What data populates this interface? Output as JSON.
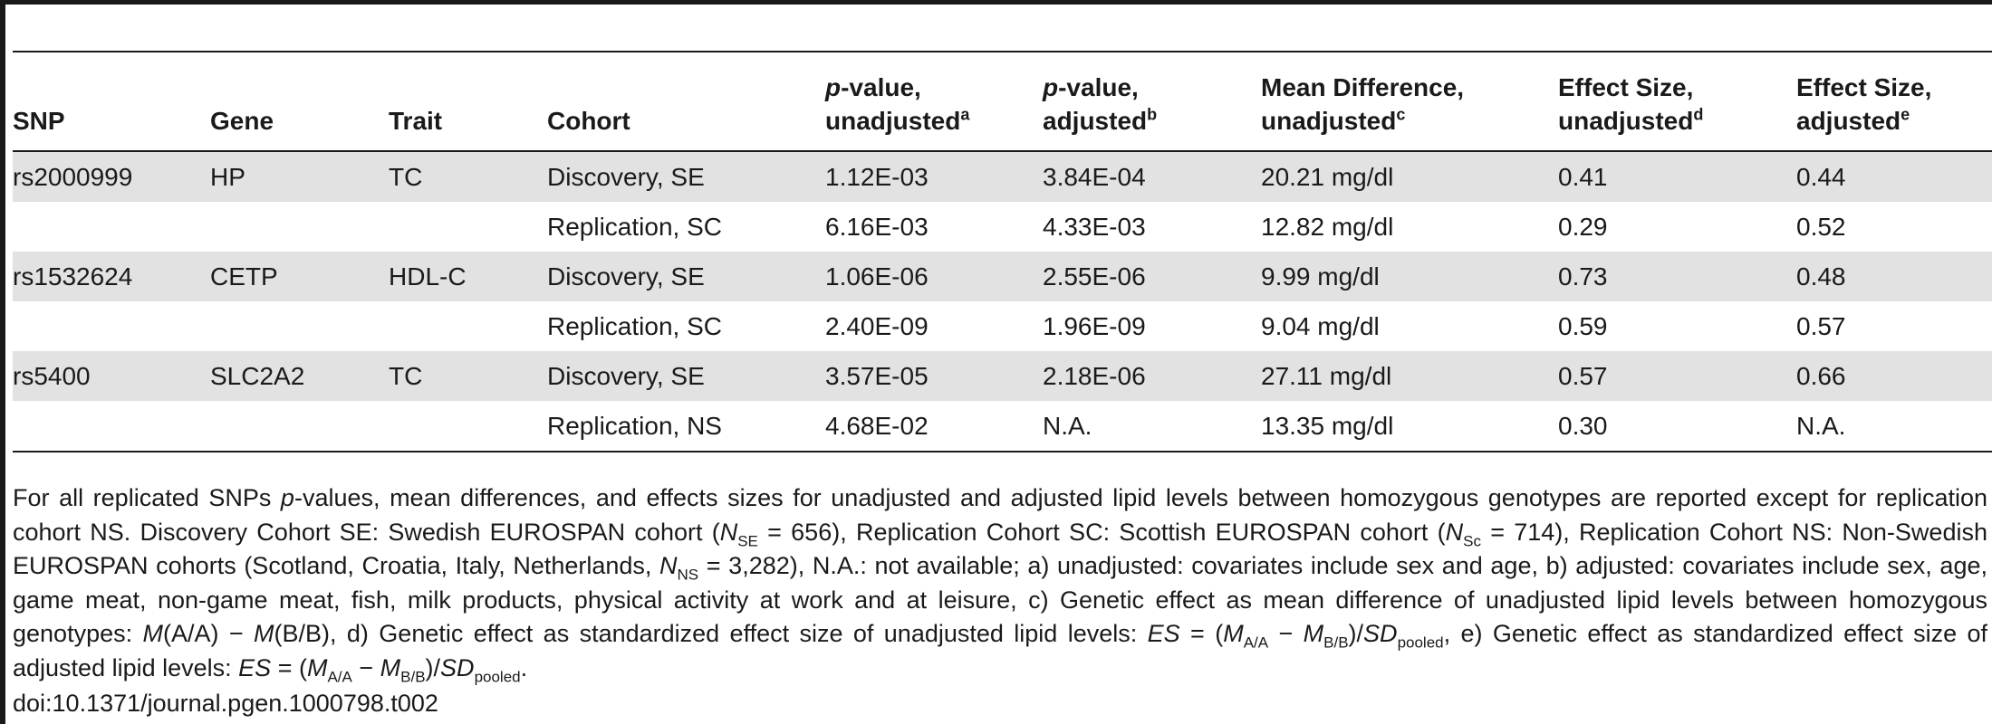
{
  "table": {
    "headers": {
      "snp": "SNP",
      "gene": "Gene",
      "trait": "Trait",
      "cohort": "Cohort",
      "pval_unadj": {
        "p": "p",
        "rest1": "-value,",
        "line2": "unadjusted",
        "sup": "a"
      },
      "pval_adj": {
        "p": "p",
        "rest1": "-value,",
        "line2": "adjusted",
        "sup": "b"
      },
      "mean_diff": {
        "line1": "Mean Difference,",
        "line2": "unadjusted",
        "sup": "c"
      },
      "es_unadj": {
        "line1": "Effect Size,",
        "line2": "unadjusted",
        "sup": "d"
      },
      "es_adj": {
        "line1": "Effect Size,",
        "line2": "adjusted",
        "sup": "e"
      }
    },
    "rows": [
      {
        "snp": "rs2000999",
        "gene": "HP",
        "trait": "TC",
        "cohort": "Discovery, SE",
        "p_unadj": "1.12E-03",
        "p_adj": "3.84E-04",
        "mean_diff": "20.21 mg/dl",
        "es_unadj": "0.41",
        "es_adj": "0.44"
      },
      {
        "snp": "",
        "gene": "",
        "trait": "",
        "cohort": "Replication, SC",
        "p_unadj": "6.16E-03",
        "p_adj": "4.33E-03",
        "mean_diff": "12.82 mg/dl",
        "es_unadj": "0.29",
        "es_adj": "0.52"
      },
      {
        "snp": "rs1532624",
        "gene": "CETP",
        "trait": "HDL-C",
        "cohort": "Discovery, SE",
        "p_unadj": "1.06E-06",
        "p_adj": "2.55E-06",
        "mean_diff": "9.99 mg/dl",
        "es_unadj": "0.73",
        "es_adj": "0.48"
      },
      {
        "snp": "",
        "gene": "",
        "trait": "",
        "cohort": "Replication, SC",
        "p_unadj": "2.40E-09",
        "p_adj": "1.96E-09",
        "mean_diff": "9.04 mg/dl",
        "es_unadj": "0.59",
        "es_adj": "0.57"
      },
      {
        "snp": "rs5400",
        "gene": "SLC2A2",
        "trait": "TC",
        "cohort": "Discovery, SE",
        "p_unadj": "3.57E-05",
        "p_adj": "2.18E-06",
        "mean_diff": "27.11 mg/dl",
        "es_unadj": "0.57",
        "es_adj": "0.66"
      },
      {
        "snp": "",
        "gene": "",
        "trait": "",
        "cohort": "Replication, NS",
        "p_unadj": "4.68E-02",
        "p_adj": "N.A.",
        "mean_diff": "13.35 mg/dl",
        "es_unadj": "0.30",
        "es_adj": "N.A."
      }
    ]
  },
  "footnote": {
    "s1": "For all replicated SNPs ",
    "s2": "p",
    "s3": "-values, mean differences, and effects sizes for unadjusted and adjusted lipid levels between homozygous genotypes are reported except for replication cohort NS. Discovery Cohort SE: Swedish EUROSPAN cohort (",
    "s4": "N",
    "s5": "SE",
    "s6": " = 656), Replication Cohort SC: Scottish EUROSPAN cohort (",
    "s7": "N",
    "s8": "Sc",
    "s9": " = 714), Replication Cohort NS: Non-Swedish EUROSPAN cohorts (Scotland, Croatia, Italy, Netherlands, ",
    "s10": "N",
    "s11": "NS",
    "s12": " = 3,282), N.A.: not available; a) unadjusted: covariates include sex and age, b) adjusted: covariates include sex, age, game meat, non-game meat, fish, milk products, physical activity at work and at leisure, c) Genetic effect as mean difference of unadjusted lipid levels between homozygous genotypes: ",
    "s13": "M",
    "s14": "(A/A) − ",
    "s15": "M",
    "s16": "(B/B), d) Genetic effect as standardized effect size of unadjusted lipid levels: ",
    "s17": "ES",
    "s18": " = (",
    "s19": "M",
    "s20": "A/A",
    "s21": " − ",
    "s22": "M",
    "s23": "B/B",
    "s24": ")/",
    "s25": "SD",
    "s26": "pooled",
    "s27": ", e) Genetic effect as standardized effect size of adjusted lipid levels: ",
    "s28": "ES",
    "s29": " = (",
    "s30": "M",
    "s31": "A/A",
    "s32": " − ",
    "s33": "M",
    "s34": "B/B",
    "s35": ")/",
    "s36": "SD",
    "s37": "pooled",
    "s38": "."
  },
  "doi": "doi:10.1371/journal.pgen.1000798.t002"
}
